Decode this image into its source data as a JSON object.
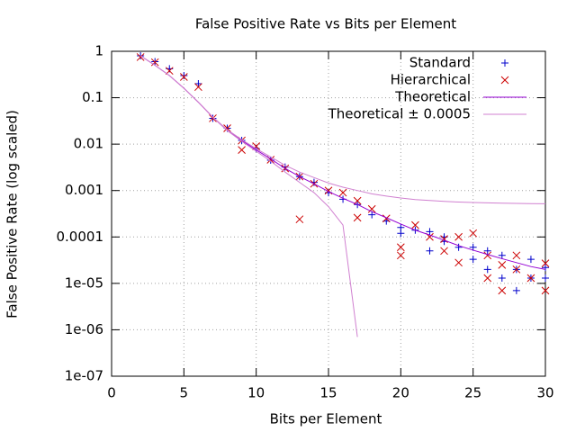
{
  "chart_data": {
    "type": "scatter",
    "title": "False Positive Rate vs Bits per Element",
    "xlabel": "Bits per Element",
    "ylabel": "False Positive Rate (log scaled)",
    "xlim": [
      0,
      30
    ],
    "xticks": [
      0,
      5,
      10,
      15,
      20,
      25,
      30
    ],
    "ylim": [
      1e-07,
      1
    ],
    "log_y": true,
    "yticks": [
      1,
      0.1,
      0.01,
      0.001,
      0.0001,
      {
        "value": 1e-05,
        "label": "1e-05"
      },
      {
        "value": 1e-06,
        "label": "1e-06"
      },
      {
        "value": 1e-07,
        "label": "1e-07"
      }
    ],
    "grid": true,
    "legend": "top-right",
    "series": [
      {
        "name": "Standard",
        "color": "#0000cc",
        "marker": "+",
        "x": [
          2,
          3,
          4,
          5,
          6,
          7,
          8,
          9,
          10,
          11,
          12,
          13,
          14,
          15,
          16,
          17,
          18,
          19,
          20,
          20,
          21,
          22,
          22,
          23,
          23,
          24,
          25,
          25,
          26,
          26,
          27,
          27,
          28,
          28,
          29,
          29,
          30,
          30
        ],
        "values": [
          0.8,
          0.6,
          0.42,
          0.3,
          0.2,
          0.036,
          0.022,
          0.012,
          0.008,
          0.0045,
          0.0032,
          0.002,
          0.0015,
          0.0009,
          0.00065,
          0.0005,
          0.0003,
          0.00022,
          0.00012,
          0.00016,
          0.00014,
          0.00013,
          5e-05,
          0.0001,
          8e-05,
          6e-05,
          6e-05,
          3.3e-05,
          5e-05,
          2e-05,
          4e-05,
          1.3e-05,
          2e-05,
          7e-06,
          3.3e-05,
          1.3e-05,
          1.3e-05,
          2.2e-05
        ]
      },
      {
        "name": "Hierarchical",
        "color": "#cc0000",
        "marker": "x",
        "x": [
          2,
          3,
          4,
          5,
          6,
          7,
          8,
          9,
          9,
          10,
          11,
          12,
          13,
          13,
          14,
          15,
          16,
          17,
          17,
          18,
          19,
          20,
          20,
          21,
          22,
          23,
          23,
          24,
          24,
          25,
          26,
          26,
          27,
          27,
          28,
          28,
          29,
          30,
          30
        ],
        "values": [
          0.75,
          0.58,
          0.38,
          0.28,
          0.17,
          0.036,
          0.022,
          0.0075,
          0.012,
          0.009,
          0.0046,
          0.003,
          0.00024,
          0.002,
          0.0014,
          0.001,
          0.0009,
          0.00026,
          0.0006,
          0.0004,
          0.00025,
          6e-05,
          4e-05,
          0.00018,
          0.0001,
          5e-05,
          9e-05,
          0.0001,
          2.8e-05,
          0.00012,
          1.3e-05,
          4e-05,
          7e-06,
          2.5e-05,
          4e-05,
          2e-05,
          1.3e-05,
          2.7e-05,
          7e-06
        ]
      },
      {
        "name": "Theoretical",
        "color": "#9400d3",
        "x": [
          2,
          3,
          4,
          5,
          6,
          7,
          8,
          9,
          10,
          11,
          12,
          13,
          14,
          15,
          16,
          17,
          18,
          19,
          20,
          21,
          22,
          23,
          24,
          25,
          26,
          27,
          28,
          29,
          30
        ],
        "values": [
          0.8,
          0.5,
          0.3,
          0.16,
          0.08,
          0.038,
          0.02,
          0.012,
          0.0075,
          0.0048,
          0.003,
          0.002,
          0.0014,
          0.00095,
          0.00068,
          0.0005007,
          0.00035,
          0.00026,
          0.00019,
          0.00014,
          0.00011,
          8.5e-05,
          6.5e-05,
          5.2e-05,
          4.2e-05,
          3.4e-05,
          2.8e-05,
          2.3e-05,
          2e-05
        ]
      },
      {
        "name": "Theoretical ± 0.0005",
        "color": "#d080d0",
        "x": [
          2,
          3,
          4,
          5,
          6,
          7,
          8,
          9,
          10,
          11,
          12,
          13,
          14,
          15,
          16,
          17,
          18,
          19,
          20,
          21,
          22,
          23,
          24,
          25,
          26,
          27,
          28,
          29,
          30
        ],
        "values": [
          0.8005,
          0.5005,
          0.3005,
          0.1605,
          0.0805,
          0.0385,
          0.0205,
          0.0125,
          0.008,
          0.0053,
          0.0035,
          0.0025,
          0.0019,
          0.00145,
          0.00118,
          0.0010007,
          0.00085,
          0.00076,
          0.00069,
          0.00064,
          0.00061,
          0.000585,
          0.000565,
          0.000552,
          0.000542,
          0.000534,
          0.000528,
          0.000523,
          0.00052
        ]
      },
      {
        "color": "#d080d0",
        "x": [
          2,
          3,
          4,
          5,
          6,
          7,
          8,
          9,
          10,
          11,
          12,
          13,
          14,
          15,
          16,
          17
        ],
        "values": [
          0.7995,
          0.4995,
          0.2995,
          0.1595,
          0.0795,
          0.0375,
          0.0195,
          0.0115,
          0.007,
          0.0043,
          0.0025,
          0.0015,
          0.0009,
          0.00045,
          0.00018,
          7e-07
        ]
      }
    ]
  }
}
